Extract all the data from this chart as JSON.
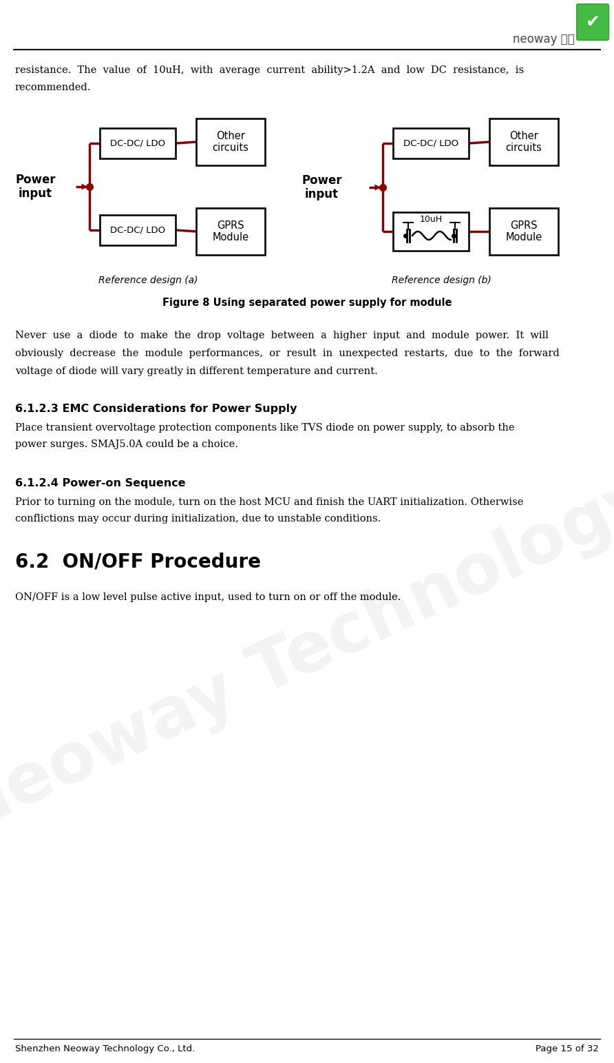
{
  "title_company": "Shenzhen Neoway Technology Co., Ltd.",
  "title_page": "Page 15 of 32",
  "bg_color": "#ffffff",
  "text_color": "#000000",
  "body_font_size": 10.5,
  "bold_font_size": 11.5,
  "heading1_font_size": 20,
  "footer_font_size": 9.5,
  "para1_line1": "resistance.  The  value  of  10uH,  with  average  current  ability>1.2A  and  low  DC  resistance,  is",
  "para1_line2": "recommended.",
  "figure_caption": "Figure 8 Using separated power supply for module",
  "para2_line1": "Never  use  a  diode  to  make  the  drop  voltage  between  a  higher  input  and  module  power.  It  will",
  "para2_line2": "obviously  decrease  the  module  performances,  or  result  in  unexpected  restarts,  due  to  the  forward",
  "para2_line3": "voltage of diode will vary greatly in different temperature and current.",
  "section_621_title": "6.1.2.3 EMC Considerations for Power Supply",
  "section_621_body1": "Place transient overvoltage protection components like TVS diode on power supply, to absorb the",
  "section_621_body2": "power surges. SMAJ5.0A could be a choice.",
  "section_622_title": "6.1.2.4 Power-on Sequence",
  "section_622_body1": "Prior to turning on the module, turn on the host MCU and finish the UART initialization. Otherwise",
  "section_622_body2": "conflictions may occur during initialization, due to unstable conditions.",
  "section_62_title": "6.2  ON/OFF Procedure",
  "section_62_body1": "ON/OFF is a low level pulse active input, used to turn on or off the module.",
  "diagram_red": "#8B0000",
  "ref_a_label": "Reference design (a)",
  "ref_b_label": "Reference design (b)",
  "dc_ldo_label": "DC-DC/ LDO",
  "other_circuits_label": "Other\ncircuits",
  "gprs_module_label": "GPRS\nModule",
  "inductor_label": "10uH"
}
